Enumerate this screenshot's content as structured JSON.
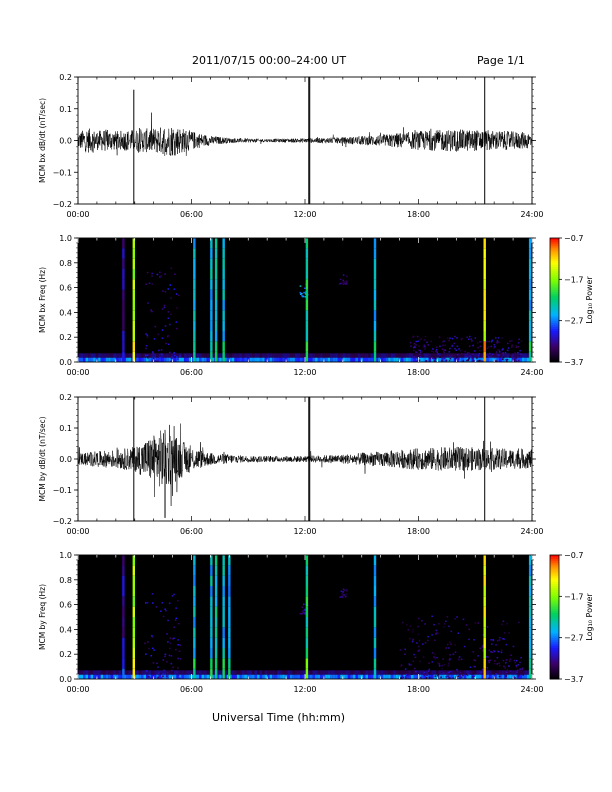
{
  "header": {
    "title": "2011/07/15  00:00–24:00 UT",
    "page": "Page 1/1"
  },
  "footer": {
    "xlabel": "Universal Time (hh:mm)"
  },
  "colors": {
    "trace": "#000000",
    "background": "#000000"
  },
  "chart_data": [
    {
      "type": "line",
      "name": "panel1",
      "ylabel": "MCM bx dB/dt (nT/sec)",
      "xlim": [
        0,
        24
      ],
      "ylim": [
        -0.2,
        0.2
      ],
      "xticks": [
        "00:00",
        "06:00",
        "12:00",
        "18:00",
        "24:00"
      ],
      "yticks": [
        "0.2",
        "0.1",
        "0.0",
        "−0.1",
        "−0.2"
      ],
      "envelope": [
        {
          "t": 0.0,
          "a": 0.025
        },
        {
          "t": 0.5,
          "a": 0.04
        },
        {
          "t": 1.0,
          "a": 0.03
        },
        {
          "t": 1.5,
          "a": 0.035
        },
        {
          "t": 2.0,
          "a": 0.03
        },
        {
          "t": 3.0,
          "a": 0.035
        },
        {
          "t": 4.0,
          "a": 0.04
        },
        {
          "t": 5.0,
          "a": 0.05
        },
        {
          "t": 6.0,
          "a": 0.03
        },
        {
          "t": 7.0,
          "a": 0.015
        },
        {
          "t": 8.0,
          "a": 0.008
        },
        {
          "t": 10.0,
          "a": 0.005
        },
        {
          "t": 12.0,
          "a": 0.007
        },
        {
          "t": 14.0,
          "a": 0.01
        },
        {
          "t": 16.0,
          "a": 0.018
        },
        {
          "t": 18.0,
          "a": 0.03
        },
        {
          "t": 20.0,
          "a": 0.035
        },
        {
          "t": 22.0,
          "a": 0.032
        },
        {
          "t": 24.0,
          "a": 0.025
        }
      ],
      "spikes": [
        {
          "t": 2.95,
          "ymin": -0.2,
          "ymax": 0.16
        },
        {
          "t": 12.2,
          "ymin": -0.2,
          "ymax": 0.2
        },
        {
          "t": 12.25,
          "ymin": -0.2,
          "ymax": 0.2
        },
        {
          "t": 21.5,
          "ymin": -0.2,
          "ymax": 0.2
        }
      ]
    },
    {
      "type": "heatmap",
      "name": "panel2",
      "ylabel": "MCM bx Freq (Hz)",
      "xlim": [
        0,
        24
      ],
      "ylim": [
        0,
        1.0
      ],
      "xticks": [
        "00:00",
        "06:00",
        "12:00",
        "18:00",
        "24:00"
      ],
      "yticks": [
        "1.0",
        "0.8",
        "0.6",
        "0.4",
        "0.2",
        "0.0"
      ],
      "colorbar": {
        "label": "Log₁₀ Power",
        "ticks": [
          "−0.7",
          "−1.7",
          "−2.7",
          "−3.7"
        ],
        "range": [
          -3.7,
          -0.7
        ]
      },
      "vlines": [
        {
          "t": 2.4,
          "v": -3.2
        },
        {
          "t": 2.95,
          "v": -1.6
        },
        {
          "t": 6.15,
          "v": -2.5
        },
        {
          "t": 7.05,
          "v": -2.5
        },
        {
          "t": 7.3,
          "v": -2.4
        },
        {
          "t": 7.7,
          "v": -2.5
        },
        {
          "t": 12.1,
          "v": -2.2
        },
        {
          "t": 15.7,
          "v": -2.5
        },
        {
          "t": 21.5,
          "v": -1.4
        },
        {
          "t": 23.9,
          "v": -2.5
        }
      ],
      "blobs": [
        {
          "t0": 3.5,
          "t1": 5.4,
          "f0": 0.0,
          "f1": 0.75,
          "v": -3.2
        },
        {
          "t0": 11.7,
          "t1": 12.1,
          "f0": 0.52,
          "f1": 0.62,
          "v": -2.6
        },
        {
          "t0": 13.8,
          "t1": 14.2,
          "f0": 0.62,
          "f1": 0.72,
          "v": -3.3
        },
        {
          "t0": 17.5,
          "t1": 23.5,
          "f0": 0.0,
          "f1": 0.2,
          "v": -3.3
        }
      ]
    },
    {
      "type": "line",
      "name": "panel3",
      "ylabel": "MCM by dB/dt (nT/sec)",
      "xlim": [
        0,
        24
      ],
      "ylim": [
        -0.2,
        0.2
      ],
      "xticks": [
        "00:00",
        "06:00",
        "12:00",
        "18:00",
        "24:00"
      ],
      "yticks": [
        "0.2",
        "0.1",
        "0.0",
        "−0.1",
        "−0.2"
      ],
      "envelope": [
        {
          "t": 0.0,
          "a": 0.02
        },
        {
          "t": 1.0,
          "a": 0.025
        },
        {
          "t": 2.0,
          "a": 0.03
        },
        {
          "t": 3.0,
          "a": 0.04
        },
        {
          "t": 3.8,
          "a": 0.07
        },
        {
          "t": 4.5,
          "a": 0.1
        },
        {
          "t": 5.0,
          "a": 0.08
        },
        {
          "t": 6.0,
          "a": 0.04
        },
        {
          "t": 7.0,
          "a": 0.02
        },
        {
          "t": 9.0,
          "a": 0.01
        },
        {
          "t": 12.0,
          "a": 0.01
        },
        {
          "t": 14.0,
          "a": 0.015
        },
        {
          "t": 16.0,
          "a": 0.025
        },
        {
          "t": 18.0,
          "a": 0.035
        },
        {
          "t": 20.0,
          "a": 0.04
        },
        {
          "t": 22.0,
          "a": 0.035
        },
        {
          "t": 24.0,
          "a": 0.03
        }
      ],
      "spikes": [
        {
          "t": 2.95,
          "ymin": -0.2,
          "ymax": 0.2
        },
        {
          "t": 4.6,
          "ymin": -0.19,
          "ymax": 0.05
        },
        {
          "t": 12.2,
          "ymin": -0.2,
          "ymax": 0.2
        },
        {
          "t": 12.25,
          "ymin": -0.2,
          "ymax": 0.2
        },
        {
          "t": 21.5,
          "ymin": -0.2,
          "ymax": 0.2
        }
      ]
    },
    {
      "type": "heatmap",
      "name": "panel4",
      "ylabel": "MCM by Freq (Hz)",
      "xlim": [
        0,
        24
      ],
      "ylim": [
        0,
        1.0
      ],
      "xticks": [
        "00:00",
        "06:00",
        "12:00",
        "18:00",
        "24:00"
      ],
      "yticks": [
        "1.0",
        "0.8",
        "0.6",
        "0.4",
        "0.2",
        "0.0"
      ],
      "colorbar": {
        "label": "Log₁₀ Power",
        "ticks": [
          "−0.7",
          "−1.7",
          "−2.7",
          "−3.7"
        ],
        "range": [
          -3.7,
          -0.7
        ]
      },
      "vlines": [
        {
          "t": 2.4,
          "v": -3.2
        },
        {
          "t": 2.95,
          "v": -1.6
        },
        {
          "t": 6.15,
          "v": -2.5
        },
        {
          "t": 7.05,
          "v": -2.5
        },
        {
          "t": 7.3,
          "v": -2.4
        },
        {
          "t": 7.7,
          "v": -2.5
        },
        {
          "t": 8.0,
          "v": -2.6
        },
        {
          "t": 12.1,
          "v": -2.2
        },
        {
          "t": 15.7,
          "v": -2.5
        },
        {
          "t": 21.5,
          "v": -1.4
        },
        {
          "t": 23.9,
          "v": -2.5
        }
      ],
      "blobs": [
        {
          "t0": 3.5,
          "t1": 5.4,
          "f0": 0.0,
          "f1": 0.7,
          "v": -3.2
        },
        {
          "t0": 11.7,
          "t1": 12.1,
          "f0": 0.52,
          "f1": 0.6,
          "v": -3.2
        },
        {
          "t0": 13.8,
          "t1": 14.2,
          "f0": 0.65,
          "f1": 0.72,
          "v": -3.3
        },
        {
          "t0": 17.0,
          "t1": 23.5,
          "f0": 0.0,
          "f1": 0.5,
          "v": -3.3
        }
      ]
    }
  ]
}
